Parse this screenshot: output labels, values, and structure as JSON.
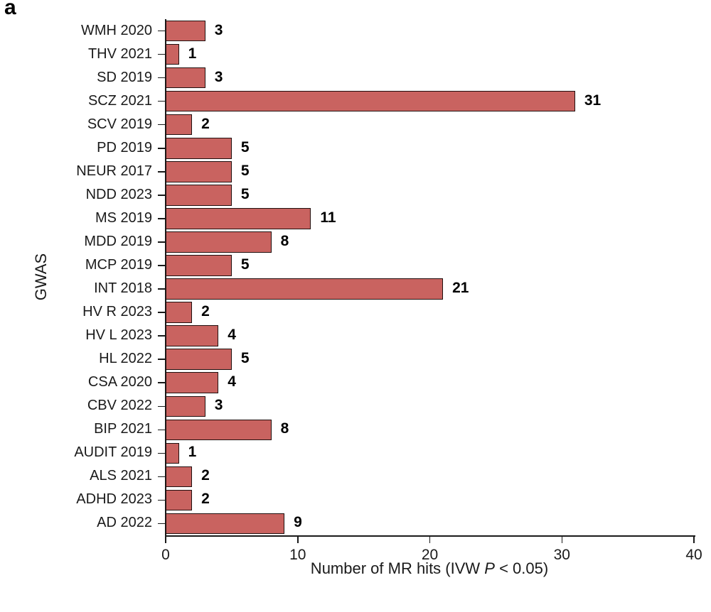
{
  "panel_label": "a",
  "chart_data": {
    "type": "bar",
    "orientation": "horizontal",
    "title": "",
    "xlabel": "Number of MR hits (IVW P < 0.05)",
    "xlabel_parts": {
      "pre": "Number of MR hits (IVW ",
      "italic": "P",
      "post": " < 0.05)"
    },
    "ylabel": "GWAS",
    "xlim": [
      0,
      40
    ],
    "xticks": [
      "0",
      "10",
      "20",
      "30",
      "40"
    ],
    "grid": false,
    "legend": "none",
    "bar_color": "#c96360",
    "bar_edge_color": "#21100f",
    "categories": [
      "WMH 2020",
      "THV 2021",
      "SD 2019",
      "SCZ 2021",
      "SCV 2019",
      "PD 2019",
      "NEUR 2017",
      "NDD 2023",
      "MS 2019",
      "MDD 2019",
      "MCP 2019",
      "INT 2018",
      "HV R 2023",
      "HV L 2023",
      "HL 2022",
      "CSA 2020",
      "CBV 2022",
      "BIP 2021",
      "AUDIT 2019",
      "ALS 2021",
      "ADHD 2023",
      "AD 2022"
    ],
    "values": [
      3,
      1,
      3,
      31,
      2,
      5,
      5,
      5,
      11,
      8,
      5,
      21,
      2,
      4,
      5,
      4,
      3,
      8,
      1,
      2,
      2,
      9
    ]
  }
}
